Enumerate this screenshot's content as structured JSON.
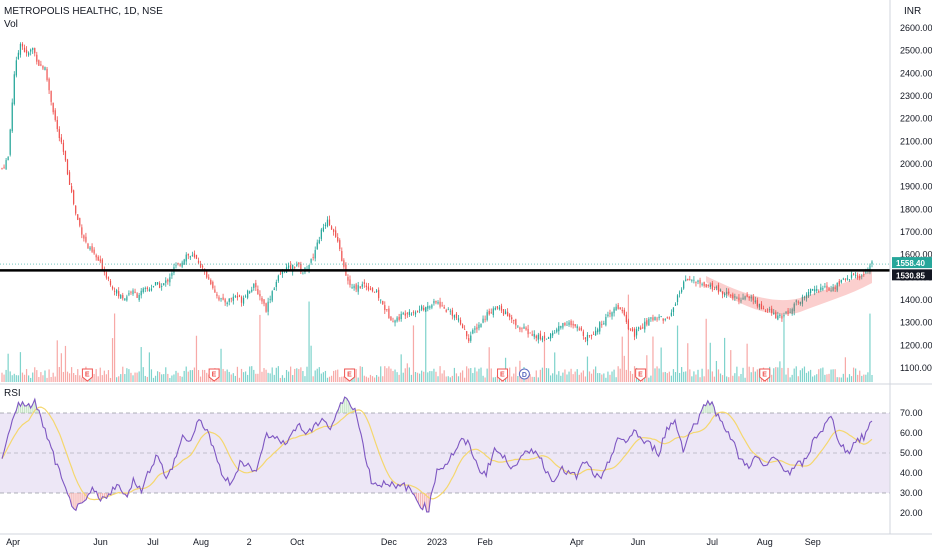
{
  "header": {
    "symbol_line": "METROPOLIS HEALTHC, 1D, NSE",
    "volume_label": "Vol",
    "currency": "INR",
    "rsi_label": "RSI"
  },
  "colors": {
    "up": "#26a69a",
    "down": "#ef5350",
    "vol_up": "#7fd3cc",
    "vol_down": "#f7a9a7",
    "rsi_line": "#7e57c2",
    "rsi_ma": "#fbe07a",
    "rsi_band": "#ede7f6",
    "support_line": "#000000",
    "earnings_tag": "#ef5350",
    "dividend_tag": "#5c6bc0",
    "last_price_tag": "#26a69a"
  },
  "chart_data": {
    "type": "candlestick",
    "price_axis": {
      "ticks": [
        "2600.00",
        "2500.00",
        "2400.00",
        "2300.00",
        "2200.00",
        "2100.00",
        "2000.00",
        "1900.00",
        "1800.00",
        "1700.00",
        "1600.00",
        "1500.00",
        "1400.00",
        "1300.00",
        "1200.00",
        "1100.00"
      ],
      "range": [
        1040,
        2660
      ]
    },
    "time_axis": {
      "labels": [
        "Apr",
        "Jun",
        "Jul",
        "Aug",
        "2",
        "Oct",
        "Dec",
        "2023",
        "Feb",
        "Apr",
        "Jun",
        "Jul",
        "Aug",
        "Sep"
      ]
    },
    "last_price": "1558.40",
    "support_level": {
      "value": 1530.85,
      "label": "1530.85"
    },
    "rsi_axis": {
      "ticks": [
        "70.00",
        "60.00",
        "50.00",
        "40.00",
        "30.00",
        "20.00"
      ],
      "band": [
        30,
        70
      ],
      "mid": 50
    },
    "events": [
      {
        "type": "E",
        "label": "E",
        "position": 0.1
      },
      {
        "type": "E",
        "label": "E",
        "position": 0.245
      },
      {
        "type": "E",
        "label": "E",
        "position": 0.4
      },
      {
        "type": "E",
        "label": "E",
        "position": 0.575
      },
      {
        "type": "D",
        "label": "D",
        "position": 0.6
      },
      {
        "type": "E",
        "label": "E",
        "position": 0.733
      },
      {
        "type": "E",
        "label": "E",
        "position": 0.875
      }
    ],
    "close_series": [
      [
        0,
        1980
      ],
      [
        3,
        2030
      ],
      [
        6,
        2400
      ],
      [
        9,
        2540
      ],
      [
        12,
        2480
      ],
      [
        15,
        2510
      ],
      [
        18,
        2440
      ],
      [
        21,
        2420
      ],
      [
        24,
        2280
      ],
      [
        27,
        2150
      ],
      [
        30,
        2050
      ],
      [
        33,
        1920
      ],
      [
        36,
        1780
      ],
      [
        39,
        1700
      ],
      [
        42,
        1630
      ],
      [
        45,
        1600
      ],
      [
        48,
        1560
      ],
      [
        51,
        1510
      ],
      [
        54,
        1460
      ],
      [
        57,
        1420
      ],
      [
        60,
        1410
      ],
      [
        63,
        1440
      ],
      [
        66,
        1420
      ],
      [
        69,
        1440
      ],
      [
        72,
        1450
      ],
      [
        75,
        1470
      ],
      [
        78,
        1460
      ],
      [
        81,
        1490
      ],
      [
        84,
        1540
      ],
      [
        87,
        1560
      ],
      [
        90,
        1600
      ],
      [
        93,
        1590
      ],
      [
        96,
        1570
      ],
      [
        99,
        1520
      ],
      [
        102,
        1480
      ],
      [
        105,
        1420
      ],
      [
        108,
        1390
      ],
      [
        111,
        1400
      ],
      [
        114,
        1420
      ],
      [
        117,
        1400
      ],
      [
        120,
        1440
      ],
      [
        123,
        1460
      ],
      [
        126,
        1420
      ],
      [
        129,
        1360
      ],
      [
        132,
        1440
      ],
      [
        135,
        1500
      ],
      [
        138,
        1540
      ],
      [
        141,
        1540
      ],
      [
        144,
        1560
      ],
      [
        147,
        1520
      ],
      [
        150,
        1560
      ],
      [
        153,
        1620
      ],
      [
        156,
        1700
      ],
      [
        159,
        1760
      ],
      [
        162,
        1700
      ],
      [
        165,
        1620
      ],
      [
        168,
        1500
      ],
      [
        171,
        1450
      ],
      [
        174,
        1460
      ],
      [
        177,
        1470
      ],
      [
        180,
        1450
      ],
      [
        183,
        1430
      ],
      [
        186,
        1380
      ],
      [
        189,
        1330
      ],
      [
        192,
        1310
      ],
      [
        195,
        1330
      ],
      [
        198,
        1350
      ],
      [
        201,
        1350
      ],
      [
        204,
        1360
      ],
      [
        207,
        1360
      ],
      [
        210,
        1380
      ],
      [
        213,
        1390
      ],
      [
        216,
        1360
      ],
      [
        219,
        1350
      ],
      [
        222,
        1320
      ],
      [
        225,
        1280
      ],
      [
        228,
        1230
      ],
      [
        231,
        1270
      ],
      [
        234,
        1300
      ],
      [
        237,
        1340
      ],
      [
        240,
        1360
      ],
      [
        243,
        1360
      ],
      [
        246,
        1340
      ],
      [
        249,
        1310
      ],
      [
        252,
        1280
      ],
      [
        255,
        1270
      ],
      [
        258,
        1250
      ],
      [
        261,
        1240
      ],
      [
        264,
        1230
      ],
      [
        267,
        1240
      ],
      [
        270,
        1260
      ],
      [
        273,
        1290
      ],
      [
        276,
        1300
      ],
      [
        279,
        1280
      ],
      [
        282,
        1270
      ],
      [
        285,
        1240
      ],
      [
        288,
        1250
      ],
      [
        291,
        1280
      ],
      [
        294,
        1310
      ],
      [
        297,
        1330
      ],
      [
        300,
        1370
      ],
      [
        303,
        1360
      ],
      [
        306,
        1270
      ],
      [
        309,
        1250
      ],
      [
        312,
        1280
      ],
      [
        315,
        1300
      ],
      [
        318,
        1320
      ],
      [
        321,
        1330
      ],
      [
        324,
        1310
      ],
      [
        327,
        1340
      ],
      [
        330,
        1420
      ],
      [
        333,
        1470
      ],
      [
        336,
        1500
      ],
      [
        339,
        1480
      ],
      [
        342,
        1470
      ],
      [
        345,
        1460
      ],
      [
        348,
        1450
      ],
      [
        351,
        1440
      ],
      [
        354,
        1430
      ],
      [
        357,
        1410
      ],
      [
        360,
        1400
      ],
      [
        363,
        1420
      ],
      [
        366,
        1410
      ],
      [
        369,
        1380
      ],
      [
        372,
        1360
      ],
      [
        375,
        1350
      ],
      [
        378,
        1330
      ],
      [
        381,
        1320
      ],
      [
        384,
        1350
      ],
      [
        387,
        1380
      ],
      [
        390,
        1400
      ],
      [
        393,
        1420
      ],
      [
        396,
        1460
      ],
      [
        399,
        1440
      ],
      [
        402,
        1460
      ],
      [
        405,
        1440
      ],
      [
        408,
        1470
      ],
      [
        411,
        1490
      ],
      [
        414,
        1500
      ],
      [
        417,
        1510
      ],
      [
        420,
        1500
      ],
      [
        423,
        1540
      ],
      [
        425,
        1558
      ]
    ],
    "rsi_series": [
      [
        0,
        48
      ],
      [
        4,
        62
      ],
      [
        8,
        76
      ],
      [
        12,
        72
      ],
      [
        16,
        76
      ],
      [
        20,
        64
      ],
      [
        24,
        52
      ],
      [
        28,
        40
      ],
      [
        32,
        28
      ],
      [
        36,
        22
      ],
      [
        40,
        24
      ],
      [
        44,
        32
      ],
      [
        48,
        26
      ],
      [
        52,
        30
      ],
      [
        56,
        34
      ],
      [
        60,
        28
      ],
      [
        64,
        36
      ],
      [
        68,
        32
      ],
      [
        72,
        42
      ],
      [
        76,
        50
      ],
      [
        80,
        36
      ],
      [
        84,
        46
      ],
      [
        88,
        58
      ],
      [
        92,
        56
      ],
      [
        96,
        66
      ],
      [
        100,
        62
      ],
      [
        104,
        48
      ],
      [
        108,
        38
      ],
      [
        112,
        34
      ],
      [
        116,
        46
      ],
      [
        120,
        44
      ],
      [
        124,
        40
      ],
      [
        128,
        58
      ],
      [
        132,
        60
      ],
      [
        136,
        54
      ],
      [
        140,
        58
      ],
      [
        144,
        64
      ],
      [
        148,
        60
      ],
      [
        152,
        62
      ],
      [
        156,
        68
      ],
      [
        160,
        62
      ],
      [
        164,
        72
      ],
      [
        168,
        78
      ],
      [
        172,
        72
      ],
      [
        176,
        54
      ],
      [
        180,
        36
      ],
      [
        184,
        34
      ],
      [
        188,
        36
      ],
      [
        192,
        32
      ],
      [
        196,
        34
      ],
      [
        200,
        30
      ],
      [
        204,
        24
      ],
      [
        208,
        22
      ],
      [
        212,
        42
      ],
      [
        216,
        44
      ],
      [
        220,
        50
      ],
      [
        224,
        56
      ],
      [
        228,
        54
      ],
      [
        232,
        42
      ],
      [
        236,
        40
      ],
      [
        240,
        52
      ],
      [
        244,
        48
      ],
      [
        248,
        44
      ],
      [
        252,
        46
      ],
      [
        256,
        50
      ],
      [
        260,
        52
      ],
      [
        264,
        44
      ],
      [
        268,
        36
      ],
      [
        272,
        42
      ],
      [
        276,
        40
      ],
      [
        280,
        38
      ],
      [
        284,
        46
      ],
      [
        288,
        40
      ],
      [
        292,
        36
      ],
      [
        296,
        46
      ],
      [
        300,
        58
      ],
      [
        304,
        54
      ],
      [
        308,
        62
      ],
      [
        312,
        56
      ],
      [
        316,
        54
      ],
      [
        320,
        50
      ],
      [
        324,
        62
      ],
      [
        328,
        66
      ],
      [
        332,
        52
      ],
      [
        336,
        62
      ],
      [
        340,
        68
      ],
      [
        344,
        78
      ],
      [
        348,
        70
      ],
      [
        352,
        64
      ],
      [
        356,
        56
      ],
      [
        360,
        46
      ],
      [
        364,
        44
      ],
      [
        368,
        48
      ],
      [
        372,
        42
      ],
      [
        376,
        48
      ],
      [
        380,
        44
      ],
      [
        384,
        40
      ],
      [
        388,
        44
      ],
      [
        392,
        46
      ],
      [
        396,
        58
      ],
      [
        400,
        62
      ],
      [
        404,
        68
      ],
      [
        408,
        56
      ],
      [
        412,
        50
      ],
      [
        416,
        56
      ],
      [
        420,
        58
      ],
      [
        424,
        66
      ]
    ]
  }
}
